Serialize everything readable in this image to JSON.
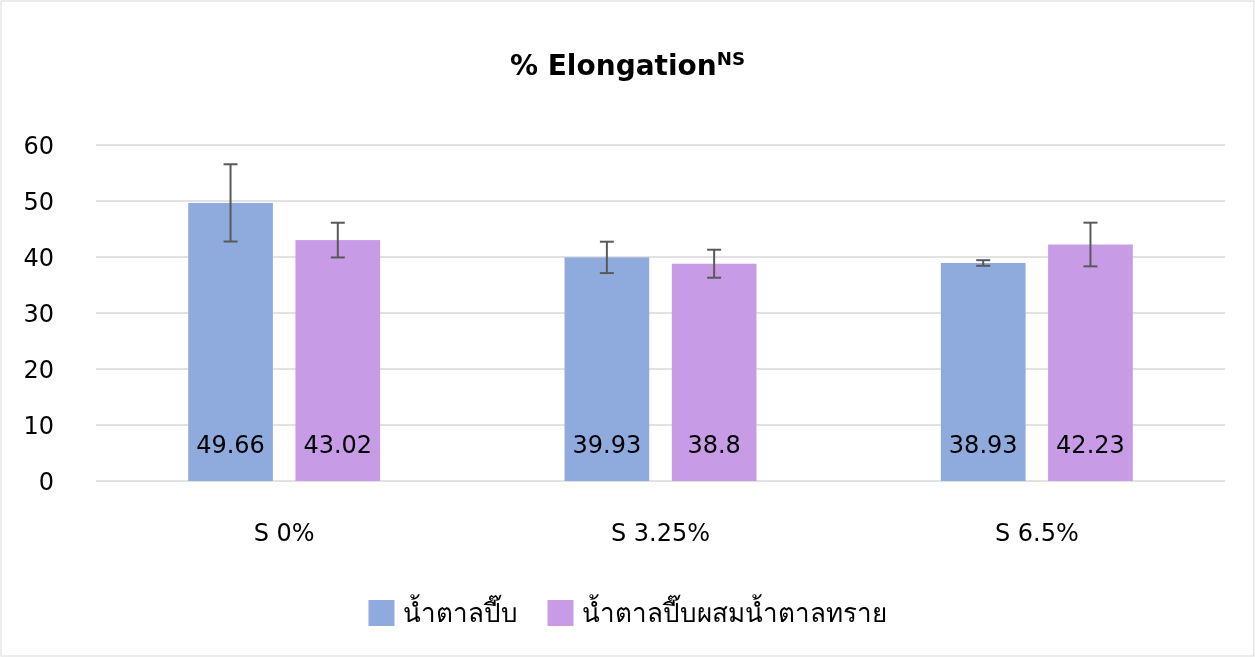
{
  "chart_data": {
    "type": "bar",
    "title": "% Elongation$^{NS}$",
    "categories": [
      "S 0%",
      "S 3.25%",
      "S 6.5%"
    ],
    "series": [
      {
        "name": "น้ำตาลปี๊บ",
        "color": "#8faadc",
        "values": [
          49.66,
          39.93,
          38.93
        ],
        "errors": [
          6.9,
          2.8,
          0.5
        ]
      },
      {
        "name": "น้ำตาลปี๊บผสมน้ำตาลทราย",
        "color": "#c79be5",
        "values": [
          43.02,
          38.8,
          42.23
        ],
        "errors": [
          3.1,
          2.5,
          3.9
        ]
      }
    ],
    "ylim": [
      0,
      60
    ],
    "yticks": [
      0,
      10,
      20,
      30,
      40,
      50,
      60
    ],
    "grid": "y",
    "legend": "bottom",
    "data_labels": true
  }
}
